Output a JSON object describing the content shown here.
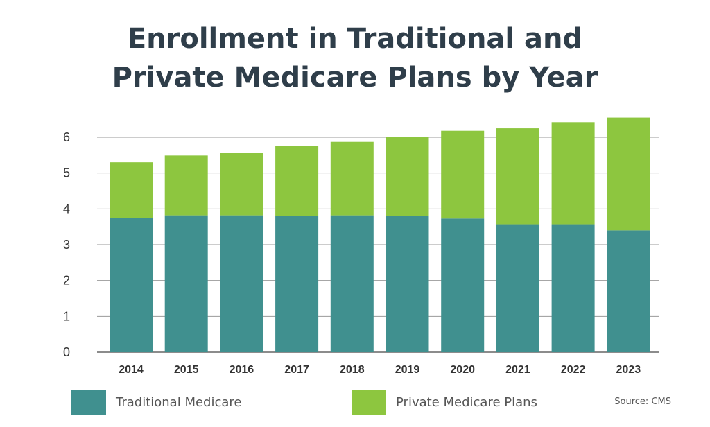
{
  "chart_data": {
    "type": "bar",
    "stacked": true,
    "title_lines": [
      "Enrollment in Traditional and",
      "Private Medicare Plans by Year"
    ],
    "categories": [
      "2014",
      "2015",
      "2016",
      "2017",
      "2018",
      "2019",
      "2020",
      "2021",
      "2022",
      "2023"
    ],
    "series": [
      {
        "name": "Traditional Medicare",
        "color": "#40908f",
        "values": [
          3.75,
          3.82,
          3.82,
          3.8,
          3.82,
          3.8,
          3.73,
          3.57,
          3.57,
          3.4
        ]
      },
      {
        "name": "Private Medicare Plans",
        "color": "#8dc63f",
        "values": [
          1.55,
          1.67,
          1.75,
          1.95,
          2.05,
          2.2,
          2.45,
          2.68,
          2.85,
          3.15
        ]
      }
    ],
    "yticks": [
      "0",
      "1",
      "2",
      "3",
      "4",
      "5",
      "6"
    ],
    "ylim": [
      0,
      6.6
    ],
    "grid": true,
    "legend": "bottom",
    "source": "Source: CMS"
  }
}
